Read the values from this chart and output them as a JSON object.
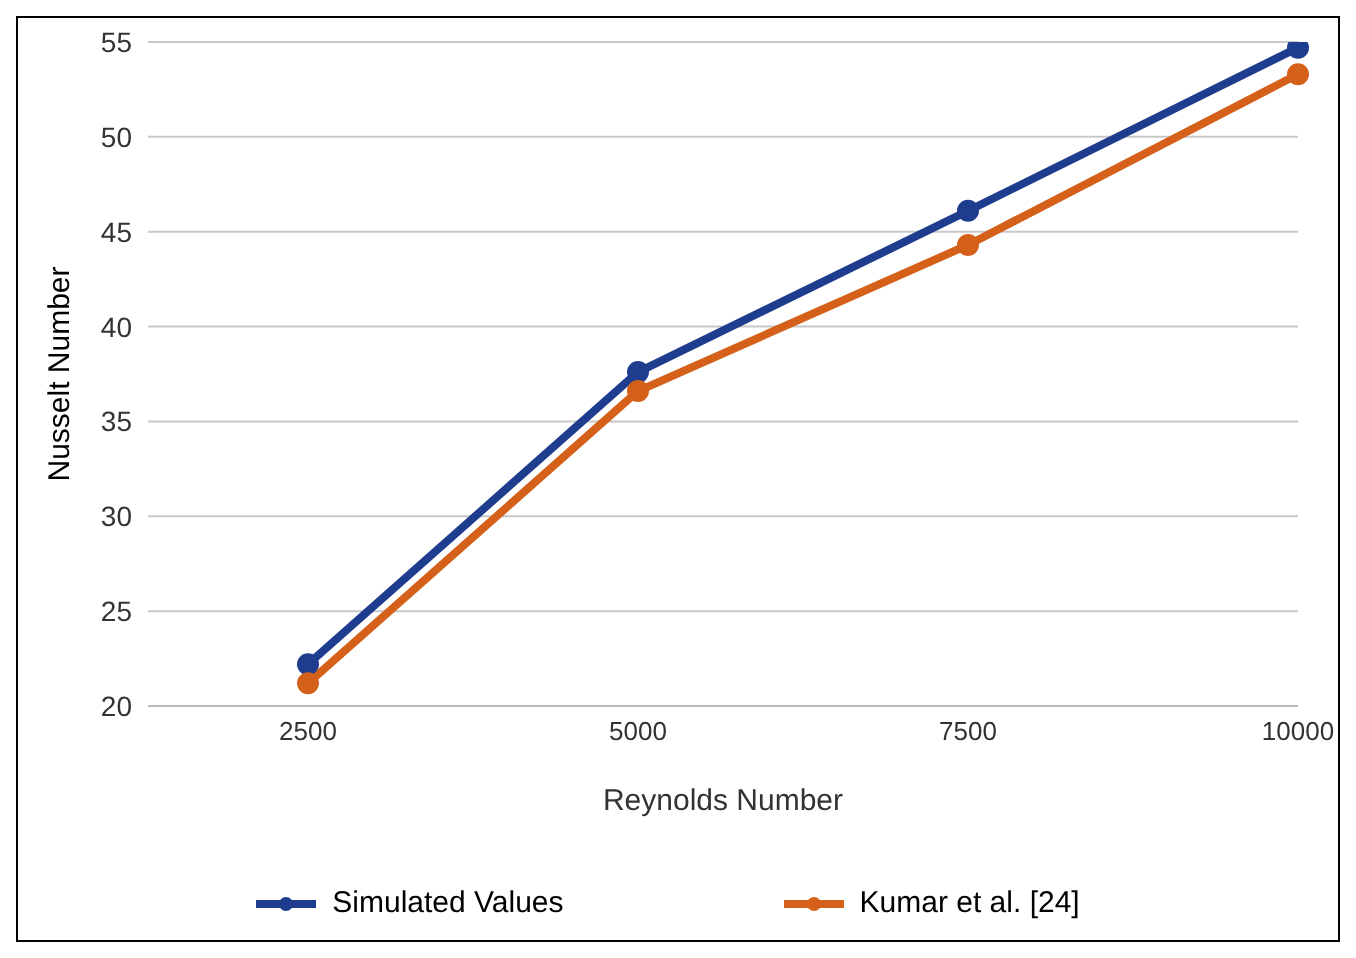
{
  "chart_data": {
    "type": "line",
    "xlabel": "Reynolds Number",
    "ylabel": "Nusselt Number",
    "categories": [
      "2500",
      "5000",
      "7500",
      "10000"
    ],
    "series": [
      {
        "name": "Simulated Values",
        "color": "#1f3d8f",
        "values": [
          22.2,
          37.6,
          46.1,
          54.7
        ]
      },
      {
        "name": "Kumar et al. [24]",
        "color": "#d4601a",
        "values": [
          21.2,
          36.6,
          44.3,
          53.3
        ]
      }
    ],
    "ylim": [
      20,
      55
    ],
    "yticks": [
      20,
      25,
      30,
      35,
      40,
      45,
      50,
      55
    ],
    "grid": "y",
    "legend": "bottom",
    "marker": "circle",
    "line_style": "solid"
  }
}
